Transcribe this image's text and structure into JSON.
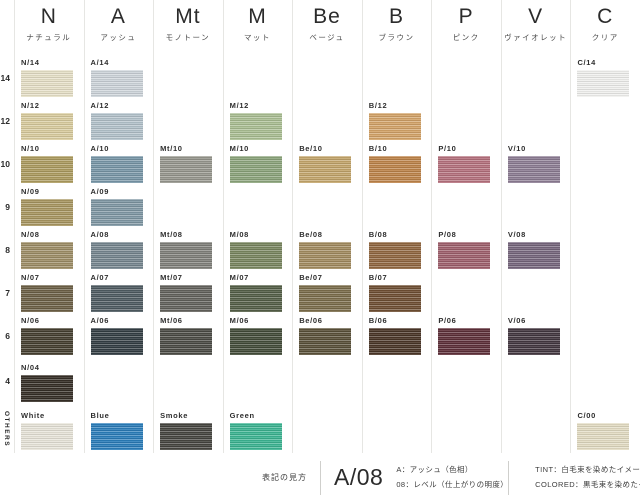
{
  "columns": [
    {
      "code": "N",
      "name": "ナチュラル"
    },
    {
      "code": "A",
      "name": "アッシュ"
    },
    {
      "code": "Mt",
      "name": "モノトーン"
    },
    {
      "code": "M",
      "name": "マット"
    },
    {
      "code": "Be",
      "name": "ベージュ"
    },
    {
      "code": "B",
      "name": "ブラウン"
    },
    {
      "code": "P",
      "name": "ピンク"
    },
    {
      "code": "V",
      "name": "ヴァイオレット"
    },
    {
      "code": "C",
      "name": "クリア"
    }
  ],
  "rows": [
    {
      "level": "14",
      "cells": [
        {
          "label": "N/14",
          "color": "#e6e0c7"
        },
        {
          "label": "A/14",
          "color": "#cdd4da"
        },
        null,
        null,
        null,
        null,
        null,
        null,
        {
          "label": "C/14",
          "color": "#f0f0ee"
        }
      ]
    },
    {
      "level": "12",
      "cells": [
        {
          "label": "N/12",
          "color": "#d9cc9e"
        },
        {
          "label": "A/12",
          "color": "#b3c2cb"
        },
        null,
        {
          "label": "M/12",
          "color": "#aabe93"
        },
        null,
        {
          "label": "B/12",
          "color": "#d3a368"
        },
        null,
        null,
        null
      ]
    },
    {
      "level": "10",
      "cells": [
        {
          "label": "N/10",
          "color": "#ac9b5f"
        },
        {
          "label": "A/10",
          "color": "#7896a7"
        },
        {
          "label": "Mt/10",
          "color": "#96968d"
        },
        {
          "label": "M/10",
          "color": "#8ba47b"
        },
        {
          "label": "Be/10",
          "color": "#c3a56b"
        },
        {
          "label": "B/10",
          "color": "#bd8349"
        },
        {
          "label": "P/10",
          "color": "#b5717d"
        },
        {
          "label": "V/10",
          "color": "#8c7c93"
        },
        null
      ]
    },
    {
      "level": "9",
      "cells": [
        {
          "label": "N/09",
          "color": "#a89661"
        },
        {
          "label": "A/09",
          "color": "#7f97a4"
        },
        null,
        null,
        null,
        null,
        null,
        null,
        null
      ]
    },
    {
      "level": "8",
      "cells": [
        {
          "label": "N/08",
          "color": "#9d8d66"
        },
        {
          "label": "A/08",
          "color": "#75858e"
        },
        {
          "label": "Mt/08",
          "color": "#80807a"
        },
        {
          "label": "M/08",
          "color": "#798660"
        },
        {
          "label": "Be/08",
          "color": "#a28b60"
        },
        {
          "label": "B/08",
          "color": "#916740"
        },
        {
          "label": "P/08",
          "color": "#9e606c"
        },
        {
          "label": "V/08",
          "color": "#76667c"
        },
        null
      ]
    },
    {
      "level": "7",
      "cells": [
        {
          "label": "N/07",
          "color": "#6c6046"
        },
        {
          "label": "A/07",
          "color": "#4f5b62"
        },
        {
          "label": "Mt/07",
          "color": "#63625c"
        },
        {
          "label": "M/07",
          "color": "#545f47"
        },
        {
          "label": "Be/07",
          "color": "#7b6d4b"
        },
        {
          "label": "B/07",
          "color": "#6e4f33"
        },
        null,
        null,
        null
      ]
    },
    {
      "level": "6",
      "cells": [
        {
          "label": "N/06",
          "color": "#453f30"
        },
        {
          "label": "A/06",
          "color": "#333e44"
        },
        {
          "label": "Mt/06",
          "color": "#4b4b45"
        },
        {
          "label": "M/06",
          "color": "#434c39"
        },
        {
          "label": "Be/06",
          "color": "#5a5139"
        },
        {
          "label": "B/06",
          "color": "#4a3527"
        },
        {
          "label": "P/06",
          "color": "#5e3039"
        },
        {
          "label": "V/06",
          "color": "#433740"
        },
        null
      ]
    },
    {
      "level": "4",
      "cells": [
        {
          "label": "N/04",
          "color": "#362f27"
        },
        null,
        null,
        null,
        null,
        null,
        null,
        null,
        null
      ]
    },
    {
      "level": "OTHERS",
      "cells": [
        {
          "label": "White",
          "color": "#e7e4d9"
        },
        {
          "label": "Blue",
          "color": "#2b7dba"
        },
        {
          "label": "Smoke",
          "color": "#464540"
        },
        {
          "label": "Green",
          "color": "#3cb492"
        },
        null,
        null,
        null,
        null,
        {
          "label": "C/00",
          "color": "#e3dcc3"
        }
      ]
    }
  ],
  "footer": {
    "legend_title": "表記の見方",
    "example": "A/08",
    "example_hue": "A：アッシュ（色相）",
    "example_level": "08：レベル（仕上がりの明度）",
    "tint": "TINT：白毛束を染めたイメージ",
    "colored": "COLORED：黒毛束を染めたイメージ"
  }
}
